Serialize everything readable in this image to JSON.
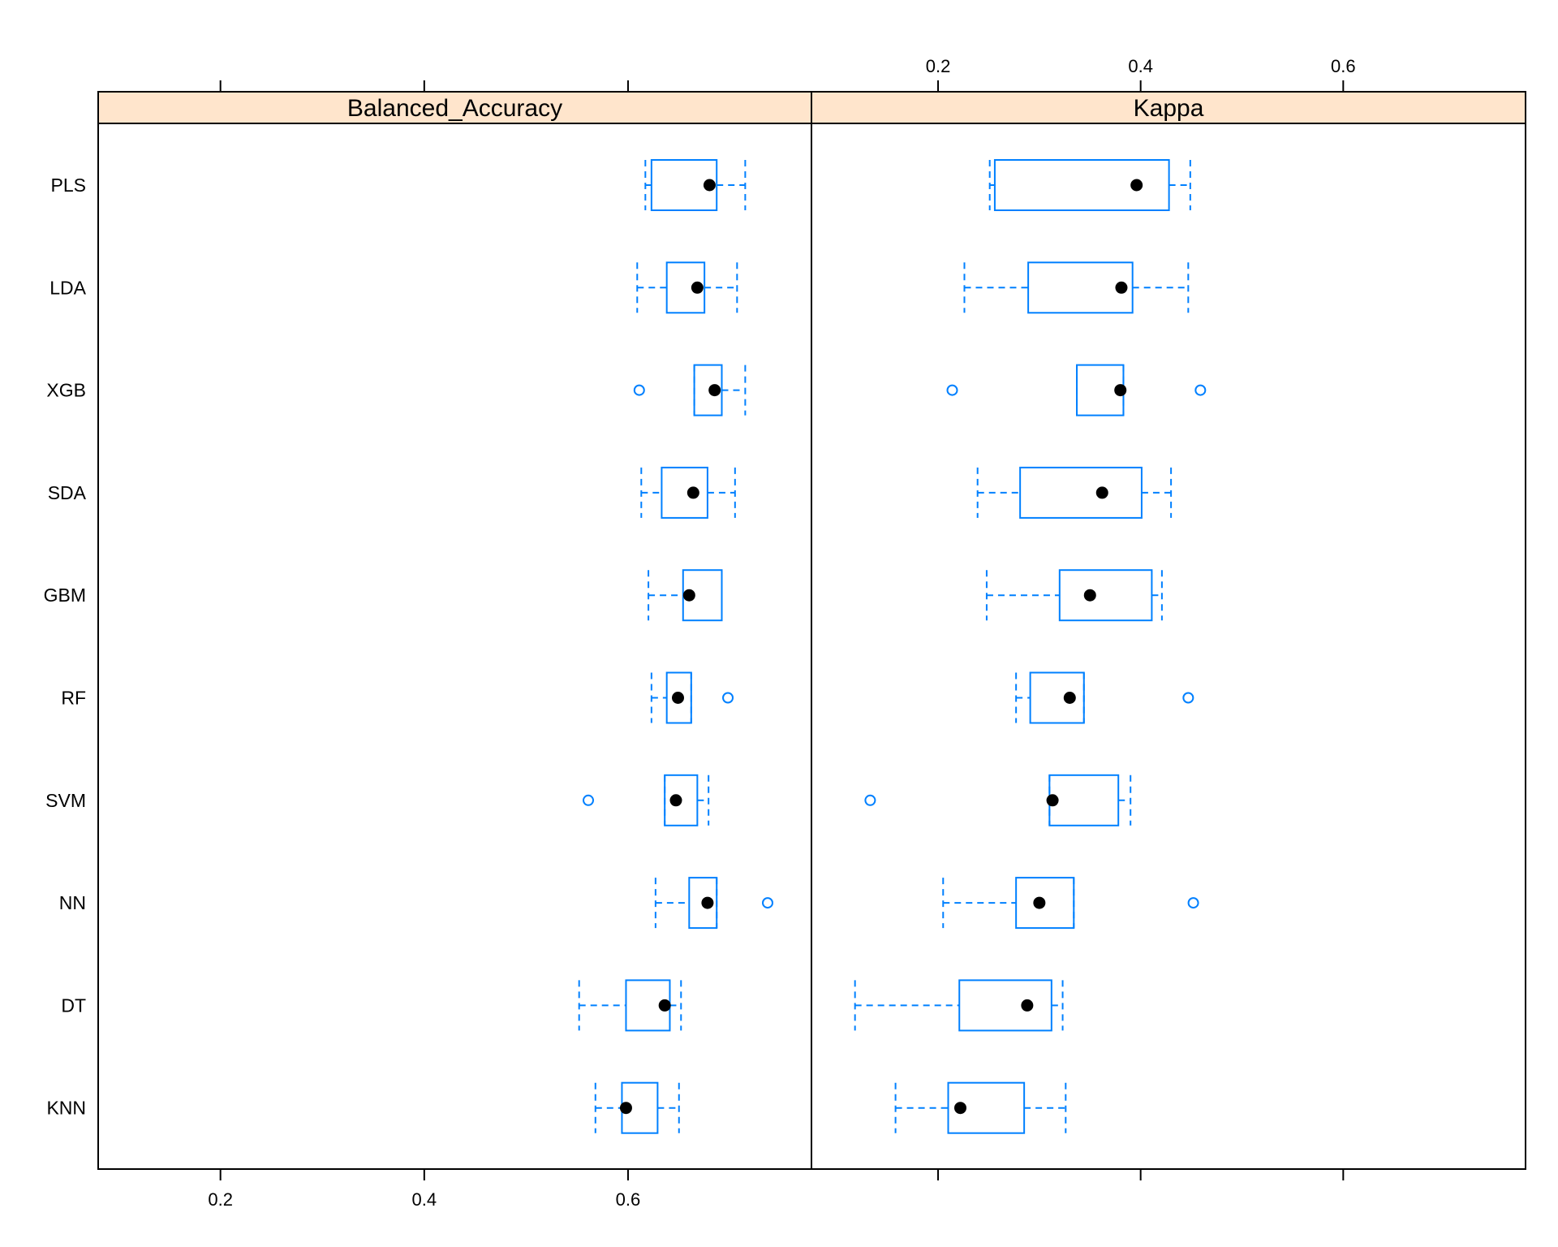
{
  "chart_data": {
    "type": "boxplot",
    "categories": [
      "PLS",
      "LDA",
      "XGB",
      "SDA",
      "GBM",
      "RF",
      "SVM",
      "NN",
      "DT",
      "KNN"
    ],
    "panels": [
      {
        "strip_label": "Balanced_Accuracy",
        "xlim": [
          0.08,
          0.78
        ],
        "ticks": [
          0.2,
          0.4,
          0.6
        ],
        "tick_labels": [
          "0.2",
          "0.4",
          "0.6"
        ],
        "boxes": [
          {
            "category": "PLS",
            "whisker_low": 0.617,
            "q1": 0.623,
            "median": 0.68,
            "q3": 0.687,
            "whisker_high": 0.715,
            "outliers": []
          },
          {
            "category": "LDA",
            "whisker_low": 0.609,
            "q1": 0.638,
            "median": 0.668,
            "q3": 0.675,
            "whisker_high": 0.707,
            "outliers": []
          },
          {
            "category": "XGB",
            "whisker_low": 0.665,
            "q1": 0.665,
            "median": 0.685,
            "q3": 0.692,
            "whisker_high": 0.715,
            "outliers": [
              0.611
            ]
          },
          {
            "category": "SDA",
            "whisker_low": 0.613,
            "q1": 0.633,
            "median": 0.664,
            "q3": 0.678,
            "whisker_high": 0.705,
            "outliers": []
          },
          {
            "category": "GBM",
            "whisker_low": 0.62,
            "q1": 0.654,
            "median": 0.66,
            "q3": 0.692,
            "whisker_high": 0.692,
            "outliers": []
          },
          {
            "category": "RF",
            "whisker_low": 0.623,
            "q1": 0.638,
            "median": 0.649,
            "q3": 0.662,
            "whisker_high": 0.662,
            "outliers": [
              0.698
            ]
          },
          {
            "category": "SVM",
            "whisker_low": 0.636,
            "q1": 0.636,
            "median": 0.647,
            "q3": 0.668,
            "whisker_high": 0.679,
            "outliers": [
              0.561
            ]
          },
          {
            "category": "NN",
            "whisker_low": 0.627,
            "q1": 0.66,
            "median": 0.678,
            "q3": 0.687,
            "whisker_high": 0.687,
            "outliers": [
              0.737
            ]
          },
          {
            "category": "DT",
            "whisker_low": 0.552,
            "q1": 0.598,
            "median": 0.636,
            "q3": 0.641,
            "whisker_high": 0.652,
            "outliers": []
          },
          {
            "category": "KNN",
            "whisker_low": 0.568,
            "q1": 0.594,
            "median": 0.598,
            "q3": 0.629,
            "whisker_high": 0.65,
            "outliers": []
          }
        ]
      },
      {
        "strip_label": "Kappa",
        "xlim": [
          0.075,
          0.78
        ],
        "ticks": [
          0.2,
          0.4,
          0.6
        ],
        "tick_labels": [
          "0.2",
          "0.4",
          "0.6"
        ],
        "boxes": [
          {
            "category": "PLS",
            "whisker_low": 0.251,
            "q1": 0.256,
            "median": 0.396,
            "q3": 0.428,
            "whisker_high": 0.449,
            "outliers": []
          },
          {
            "category": "LDA",
            "whisker_low": 0.226,
            "q1": 0.289,
            "median": 0.381,
            "q3": 0.392,
            "whisker_high": 0.447,
            "outliers": []
          },
          {
            "category": "XGB",
            "whisker_low": 0.337,
            "q1": 0.337,
            "median": 0.38,
            "q3": 0.383,
            "whisker_high": 0.383,
            "outliers": [
              0.214,
              0.459
            ]
          },
          {
            "category": "SDA",
            "whisker_low": 0.239,
            "q1": 0.281,
            "median": 0.362,
            "q3": 0.401,
            "whisker_high": 0.43,
            "outliers": []
          },
          {
            "category": "GBM",
            "whisker_low": 0.248,
            "q1": 0.32,
            "median": 0.35,
            "q3": 0.411,
            "whisker_high": 0.421,
            "outliers": []
          },
          {
            "category": "RF",
            "whisker_low": 0.277,
            "q1": 0.291,
            "median": 0.33,
            "q3": 0.344,
            "whisker_high": 0.344,
            "outliers": [
              0.447
            ]
          },
          {
            "category": "SVM",
            "whisker_low": 0.31,
            "q1": 0.31,
            "median": 0.313,
            "q3": 0.378,
            "whisker_high": 0.39,
            "outliers": [
              0.133
            ]
          },
          {
            "category": "NN",
            "whisker_low": 0.205,
            "q1": 0.277,
            "median": 0.3,
            "q3": 0.334,
            "whisker_high": 0.334,
            "outliers": [
              0.452
            ]
          },
          {
            "category": "DT",
            "whisker_low": 0.118,
            "q1": 0.221,
            "median": 0.288,
            "q3": 0.312,
            "whisker_high": 0.323,
            "outliers": []
          },
          {
            "category": "KNN",
            "whisker_low": 0.158,
            "q1": 0.21,
            "median": 0.222,
            "q3": 0.285,
            "whisker_high": 0.326,
            "outliers": []
          }
        ]
      }
    ],
    "colors": {
      "box": "#0080ff",
      "median": "#000000",
      "strip_background": "#ffe5cc",
      "frame": "#000000"
    },
    "grid": false,
    "legend": "none"
  }
}
